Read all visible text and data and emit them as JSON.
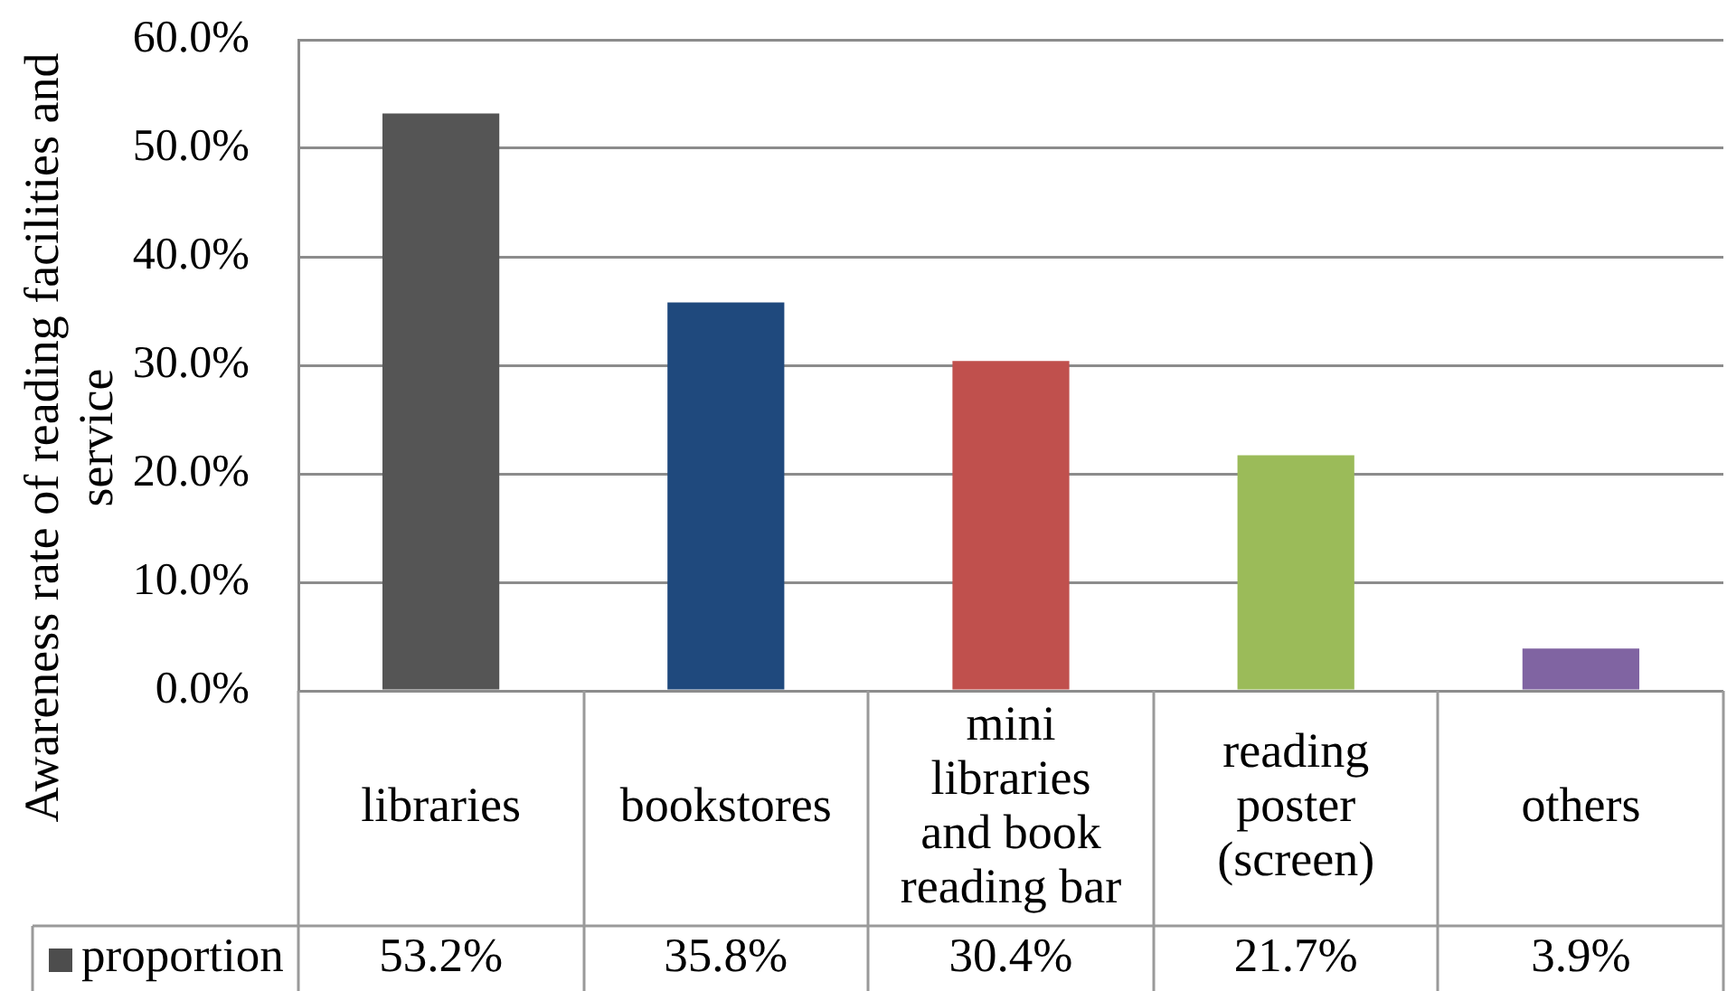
{
  "chart_data": {
    "type": "bar",
    "ylabel": "Awareness rate of reading facilities and service",
    "categories": [
      "libraries",
      "bookstores",
      "mini libraries and book reading bar",
      "reading poster (screen)",
      "others"
    ],
    "series": [
      {
        "name": "proportion",
        "color": "#4d4d4d",
        "colors": [
          "#555555",
          "#1f497d",
          "#c0504d",
          "#9bbb59",
          "#8064a2"
        ],
        "values": [
          53.2,
          35.8,
          30.4,
          21.7,
          3.9
        ],
        "value_labels": [
          "53.2%",
          "35.8%",
          "30.4%",
          "21.7%",
          "3.9%"
        ]
      }
    ],
    "ylim": [
      0,
      60
    ],
    "yticks": [
      {
        "value": 0,
        "label": "0.0%"
      },
      {
        "value": 10,
        "label": "10.0%"
      },
      {
        "value": 20,
        "label": "20.0%"
      },
      {
        "value": 30,
        "label": "30.0%"
      },
      {
        "value": 40,
        "label": "40.0%"
      },
      {
        "value": 50,
        "label": "50.0%"
      },
      {
        "value": 60,
        "label": "60.0%"
      }
    ],
    "grid": "y",
    "legend": "bottom"
  }
}
